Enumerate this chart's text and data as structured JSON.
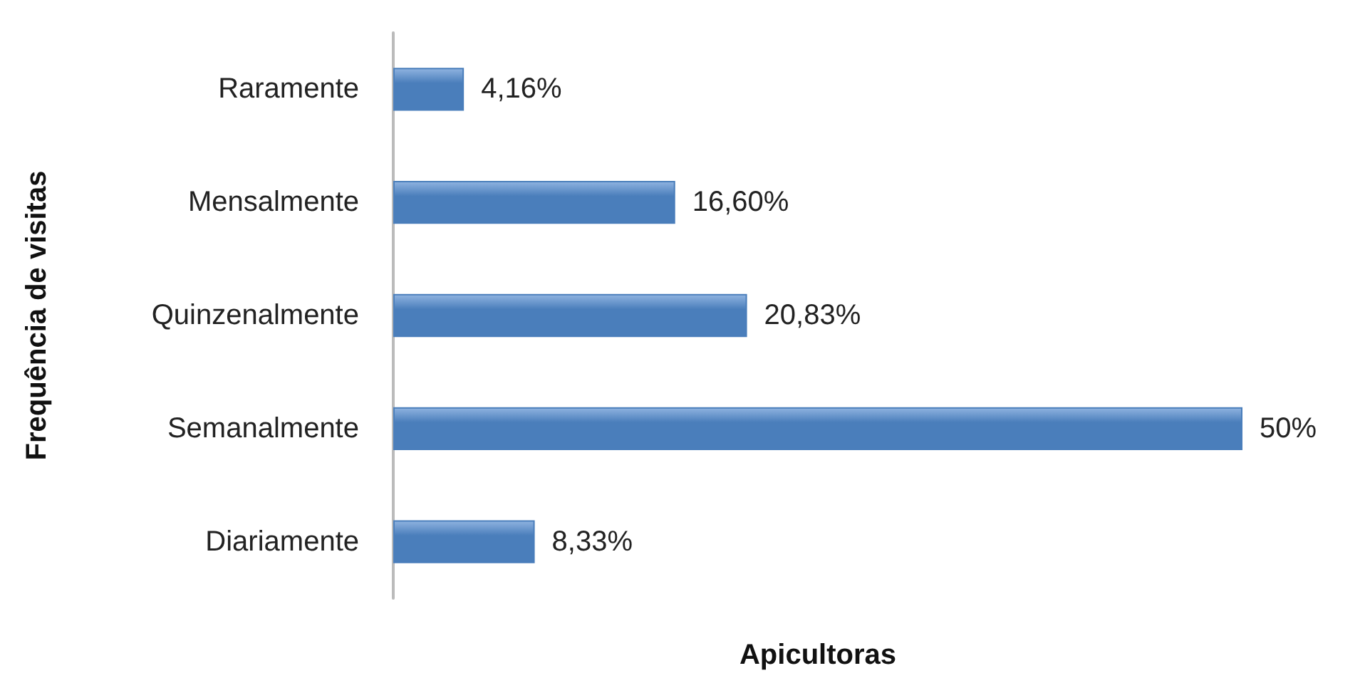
{
  "chart_data": {
    "type": "bar",
    "orientation": "horizontal",
    "xlabel": "Apicultoras",
    "ylabel": "Frequência de visitas",
    "categories": [
      "Raramente",
      "Mensalmente",
      "Quinzenalmente",
      "Semanalmente",
      "Diariamente"
    ],
    "values": [
      4.16,
      16.6,
      20.83,
      50,
      8.33
    ],
    "value_labels": [
      "4,16%",
      "16,60%",
      "20,83%",
      "50%",
      "8,33%"
    ],
    "color": "#4a7ebb",
    "tick_labels": "y",
    "grid": false
  }
}
